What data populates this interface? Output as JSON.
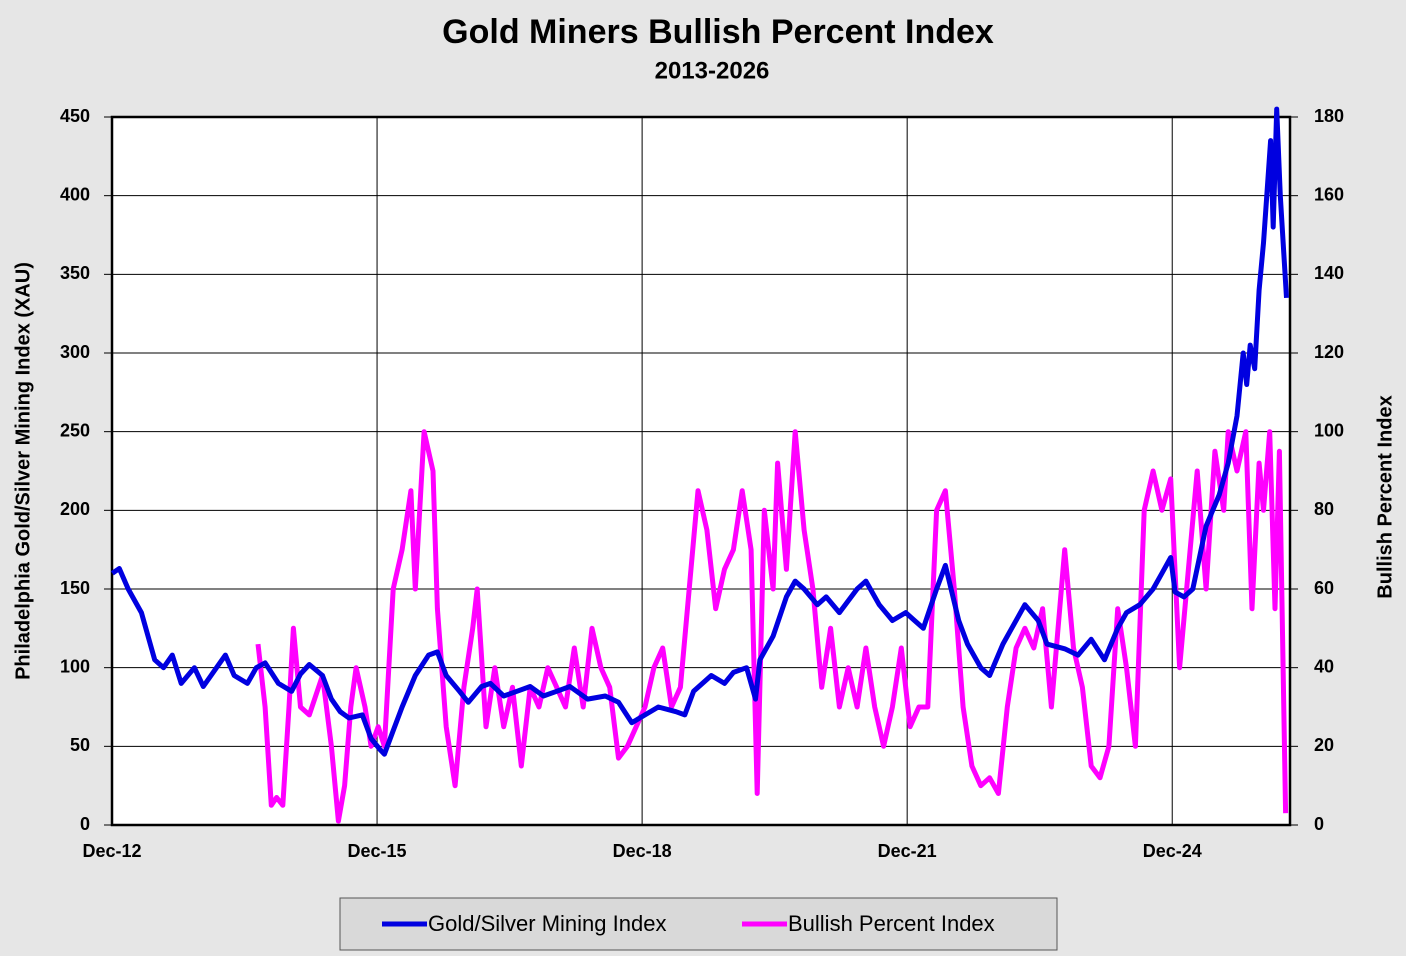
{
  "chart_data": {
    "type": "line",
    "title": "Gold Miners Bullish Percent Index",
    "subtitle": "2013-2026",
    "ylabel": "Philadelphia Gold/Silver Mining Index (XAU)",
    "y2label": "Bullish Percent Index",
    "xlim": [
      2012.917,
      2026.25
    ],
    "xticks": [
      {
        "value": 2012.917,
        "label": "Dec-12"
      },
      {
        "value": 2015.917,
        "label": "Dec-15"
      },
      {
        "value": 2018.917,
        "label": "Dec-18"
      },
      {
        "value": 2021.917,
        "label": "Dec-21"
      },
      {
        "value": 2024.917,
        "label": "Dec-24"
      }
    ],
    "ylim": [
      0,
      450
    ],
    "yticks": [
      0,
      50,
      100,
      150,
      200,
      250,
      300,
      350,
      400,
      450
    ],
    "y2lim": [
      0,
      180
    ],
    "y2ticks": [
      0,
      20,
      40,
      60,
      80,
      100,
      120,
      140,
      160,
      180
    ],
    "grid": true,
    "legend": "bottom",
    "series": [
      {
        "name": "Gold/Silver Mining Index",
        "color": "#0000e0",
        "x": [
          2012.92,
          2013.0,
          2013.1,
          2013.25,
          2013.4,
          2013.5,
          2013.6,
          2013.7,
          2013.85,
          2013.95,
          2014.1,
          2014.2,
          2014.3,
          2014.45,
          2014.55,
          2014.65,
          2014.8,
          2014.95,
          2015.05,
          2015.15,
          2015.3,
          2015.4,
          2015.5,
          2015.6,
          2015.75,
          2015.85,
          2015.95,
          2016.0,
          2016.1,
          2016.2,
          2016.35,
          2016.5,
          2016.6,
          2016.7,
          2016.85,
          2016.95,
          2017.1,
          2017.2,
          2017.35,
          2017.5,
          2017.65,
          2017.8,
          2017.95,
          2018.1,
          2018.3,
          2018.5,
          2018.65,
          2018.8,
          2018.95,
          2019.1,
          2019.3,
          2019.4,
          2019.5,
          2019.7,
          2019.85,
          2019.95,
          2020.1,
          2020.2,
          2020.25,
          2020.4,
          2020.55,
          2020.65,
          2020.75,
          2020.9,
          2021.0,
          2021.15,
          2021.35,
          2021.45,
          2021.6,
          2021.75,
          2021.9,
          2022.0,
          2022.1,
          2022.25,
          2022.35,
          2022.5,
          2022.6,
          2022.75,
          2022.85,
          2023.0,
          2023.1,
          2023.25,
          2023.4,
          2023.5,
          2023.7,
          2023.85,
          2024.0,
          2024.15,
          2024.3,
          2024.4,
          2024.55,
          2024.7,
          2024.8,
          2024.9,
          2024.95,
          2025.05,
          2025.15,
          2025.3,
          2025.45,
          2025.55,
          2025.65,
          2025.72,
          2025.76,
          2025.8,
          2025.85,
          2025.9,
          2025.95,
          2026.03,
          2026.06,
          2026.1,
          2026.14,
          2026.21
        ],
        "values": [
          160,
          163,
          150,
          135,
          105,
          100,
          108,
          90,
          100,
          88,
          100,
          108,
          95,
          90,
          100,
          103,
          90,
          85,
          96,
          102,
          95,
          80,
          72,
          68,
          70,
          55,
          48,
          45,
          60,
          75,
          95,
          108,
          110,
          95,
          85,
          78,
          88,
          90,
          82,
          85,
          88,
          82,
          85,
          88,
          80,
          82,
          78,
          65,
          70,
          75,
          72,
          70,
          85,
          95,
          90,
          97,
          100,
          80,
          105,
          120,
          145,
          155,
          150,
          140,
          145,
          135,
          150,
          155,
          140,
          130,
          135,
          130,
          125,
          150,
          165,
          130,
          115,
          100,
          95,
          115,
          125,
          140,
          130,
          115,
          112,
          108,
          118,
          105,
          125,
          135,
          140,
          150,
          160,
          170,
          148,
          145,
          150,
          190,
          210,
          230,
          260,
          300,
          280,
          305,
          290,
          340,
          370,
          435,
          380,
          455,
          400,
          335
        ]
      },
      {
        "name": "Bullish Percent Index",
        "color": "#ff00ff",
        "axis": "y2",
        "x": [
          2014.57,
          2014.65,
          2014.72,
          2014.78,
          2014.85,
          2014.92,
          2014.97,
          2015.05,
          2015.15,
          2015.3,
          2015.4,
          2015.48,
          2015.55,
          2015.62,
          2015.68,
          2015.78,
          2015.85,
          2015.93,
          2016.0,
          2016.1,
          2016.2,
          2016.3,
          2016.35,
          2016.45,
          2016.55,
          2016.6,
          2016.7,
          2016.8,
          2016.9,
          2017.0,
          2017.05,
          2017.15,
          2017.25,
          2017.35,
          2017.45,
          2017.55,
          2017.65,
          2017.75,
          2017.85,
          2017.95,
          2018.05,
          2018.15,
          2018.25,
          2018.35,
          2018.45,
          2018.55,
          2018.65,
          2018.75,
          2018.85,
          2018.95,
          2019.05,
          2019.15,
          2019.25,
          2019.35,
          2019.45,
          2019.55,
          2019.65,
          2019.75,
          2019.85,
          2019.95,
          2020.05,
          2020.15,
          2020.22,
          2020.3,
          2020.4,
          2020.45,
          2020.55,
          2020.65,
          2020.75,
          2020.85,
          2020.95,
          2021.05,
          2021.15,
          2021.25,
          2021.35,
          2021.45,
          2021.55,
          2021.65,
          2021.75,
          2021.85,
          2021.95,
          2022.05,
          2022.15,
          2022.25,
          2022.35,
          2022.45,
          2022.55,
          2022.65,
          2022.75,
          2022.85,
          2022.95,
          2023.05,
          2023.15,
          2023.25,
          2023.35,
          2023.45,
          2023.55,
          2023.7,
          2023.8,
          2023.9,
          2024.0,
          2024.1,
          2024.2,
          2024.3,
          2024.4,
          2024.5,
          2024.6,
          2024.7,
          2024.8,
          2024.9,
          2025.0,
          2025.1,
          2025.2,
          2025.3,
          2025.4,
          2025.5,
          2025.55,
          2025.65,
          2025.75,
          2025.82,
          2025.9,
          2025.95,
          2026.02,
          2026.08,
          2026.13,
          2026.2
        ],
        "values": [
          46,
          30,
          5,
          7,
          5,
          30,
          50,
          30,
          28,
          38,
          20,
          1,
          10,
          30,
          40,
          30,
          20,
          25,
          20,
          60,
          70,
          85,
          60,
          100,
          90,
          55,
          25,
          10,
          35,
          50,
          60,
          25,
          40,
          25,
          35,
          15,
          35,
          30,
          40,
          35,
          30,
          45,
          30,
          50,
          40,
          35,
          17,
          20,
          25,
          30,
          40,
          45,
          30,
          35,
          60,
          85,
          75,
          55,
          65,
          70,
          85,
          70,
          8,
          80,
          60,
          92,
          65,
          100,
          75,
          60,
          35,
          50,
          30,
          40,
          30,
          45,
          30,
          20,
          30,
          45,
          25,
          30,
          30,
          80,
          85,
          60,
          30,
          15,
          10,
          12,
          8,
          30,
          45,
          50,
          45,
          55,
          30,
          70,
          45,
          35,
          15,
          12,
          20,
          55,
          40,
          20,
          80,
          90,
          80,
          88,
          40,
          65,
          90,
          60,
          95,
          80,
          100,
          90,
          100,
          55,
          92,
          80,
          100,
          55,
          95,
          3
        ]
      }
    ]
  }
}
